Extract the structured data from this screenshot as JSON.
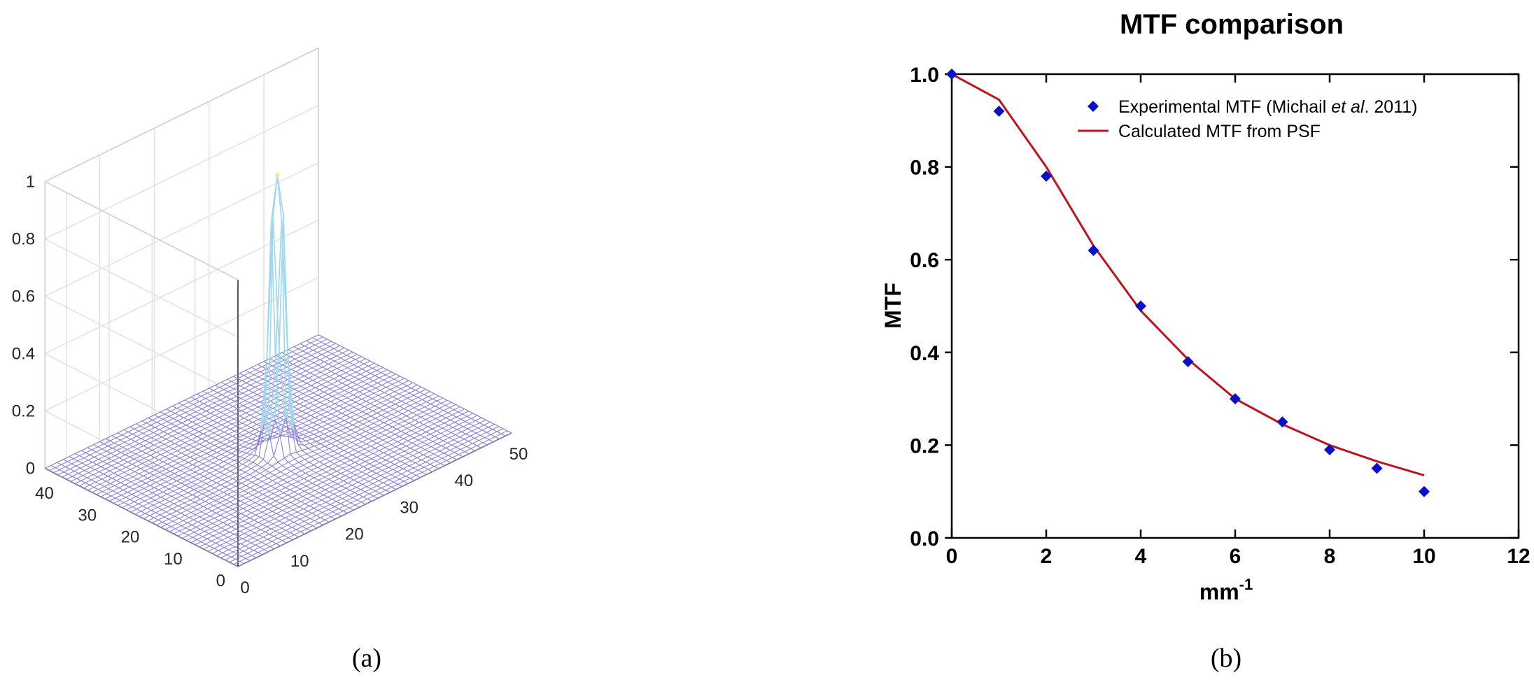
{
  "panel_labels": {
    "a": "(a)",
    "b": "(b)"
  },
  "chart_data": [
    {
      "type": "surface",
      "panel": "(a)",
      "z_ticks": [
        "0",
        "0.2",
        "0.4",
        "0.6",
        "0.8",
        "1"
      ],
      "x_ticks": [
        "0",
        "10",
        "20",
        "30",
        "40",
        "50"
      ],
      "y_ticks": [
        "0",
        "10",
        "20",
        "30",
        "40"
      ],
      "x_range": [
        0,
        50
      ],
      "y_range": [
        0,
        45
      ],
      "z_range": [
        0,
        1
      ],
      "grid": true,
      "mesh_size": 45,
      "peak_center": [
        22,
        22
      ],
      "peak_height": 0.97,
      "colors": {
        "mesh": "#8f82d4",
        "peak": "#9fd8ee",
        "peak_top": "#e9f07a"
      }
    },
    {
      "type": "scatter+line",
      "panel": "(b)",
      "title": "MTF comparison",
      "xlabel_base": "mm",
      "xlabel_sup": "-1",
      "ylabel": "MTF",
      "xlim": [
        0,
        12
      ],
      "ylim": [
        0,
        1
      ],
      "x_ticks": [
        "0",
        "2",
        "4",
        "6",
        "8",
        "10",
        "12"
      ],
      "y_ticks": [
        "0.0",
        "0.2",
        "0.4",
        "0.6",
        "0.8",
        "1.0"
      ],
      "legend_position": "top-right",
      "series": [
        {
          "name": "Experimental MTF (Michail et al. 2011)",
          "name_parts": [
            "Experimental MTF (Michail ",
            "et al",
            ". 2011)"
          ],
          "type": "scatter",
          "marker": "diamond",
          "color": "#0a10c8",
          "x": [
            0,
            1,
            2,
            3,
            4,
            5,
            6,
            7,
            8,
            9,
            10
          ],
          "y": [
            1.0,
            0.92,
            0.78,
            0.62,
            0.5,
            0.38,
            0.3,
            0.25,
            0.19,
            0.15,
            0.1
          ]
        },
        {
          "name": "Calculated MTF from PSF",
          "type": "line",
          "color": "#c0141c",
          "x": [
            0,
            1,
            2,
            3,
            4,
            5,
            6,
            7,
            8,
            9,
            10
          ],
          "y": [
            1.0,
            0.945,
            0.8,
            0.63,
            0.49,
            0.385,
            0.3,
            0.245,
            0.2,
            0.165,
            0.135
          ]
        }
      ]
    }
  ]
}
